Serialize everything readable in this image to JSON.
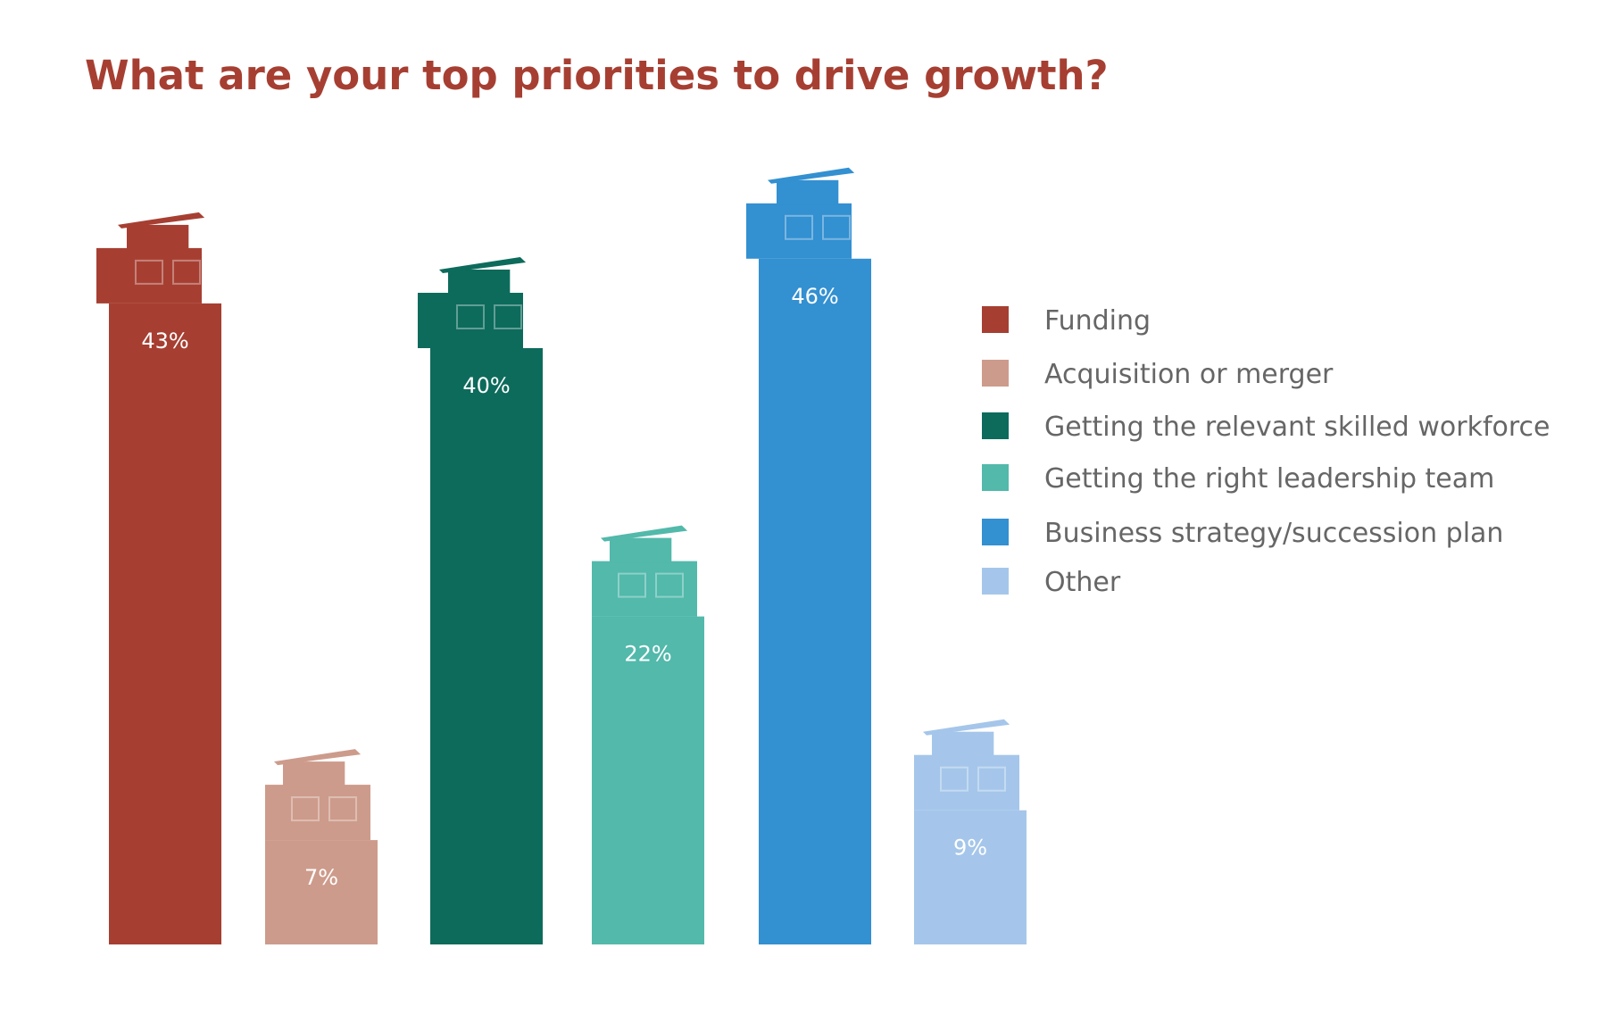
{
  "chart_data": {
    "type": "bar",
    "title": "What are your top priorities to drive growth?",
    "categories": [
      "Funding",
      "Acquisition or merger",
      "Getting the relevant skilled workforce",
      "Getting the right leadership team",
      "Business strategy/succession plan",
      "Other"
    ],
    "values": [
      43,
      7,
      40,
      22,
      46,
      9
    ],
    "labels": [
      "43%",
      "7%",
      "40%",
      "22%",
      "46%",
      "9%"
    ],
    "colors": [
      "#a63f32",
      "#cd9b8b",
      "#0d6b5c",
      "#52b9ab",
      "#3390d1",
      "#a5c6ea"
    ],
    "unit": "%",
    "ylim": [
      0,
      50
    ],
    "grid": false,
    "legend": "right",
    "xlabel": "",
    "ylabel": ""
  }
}
